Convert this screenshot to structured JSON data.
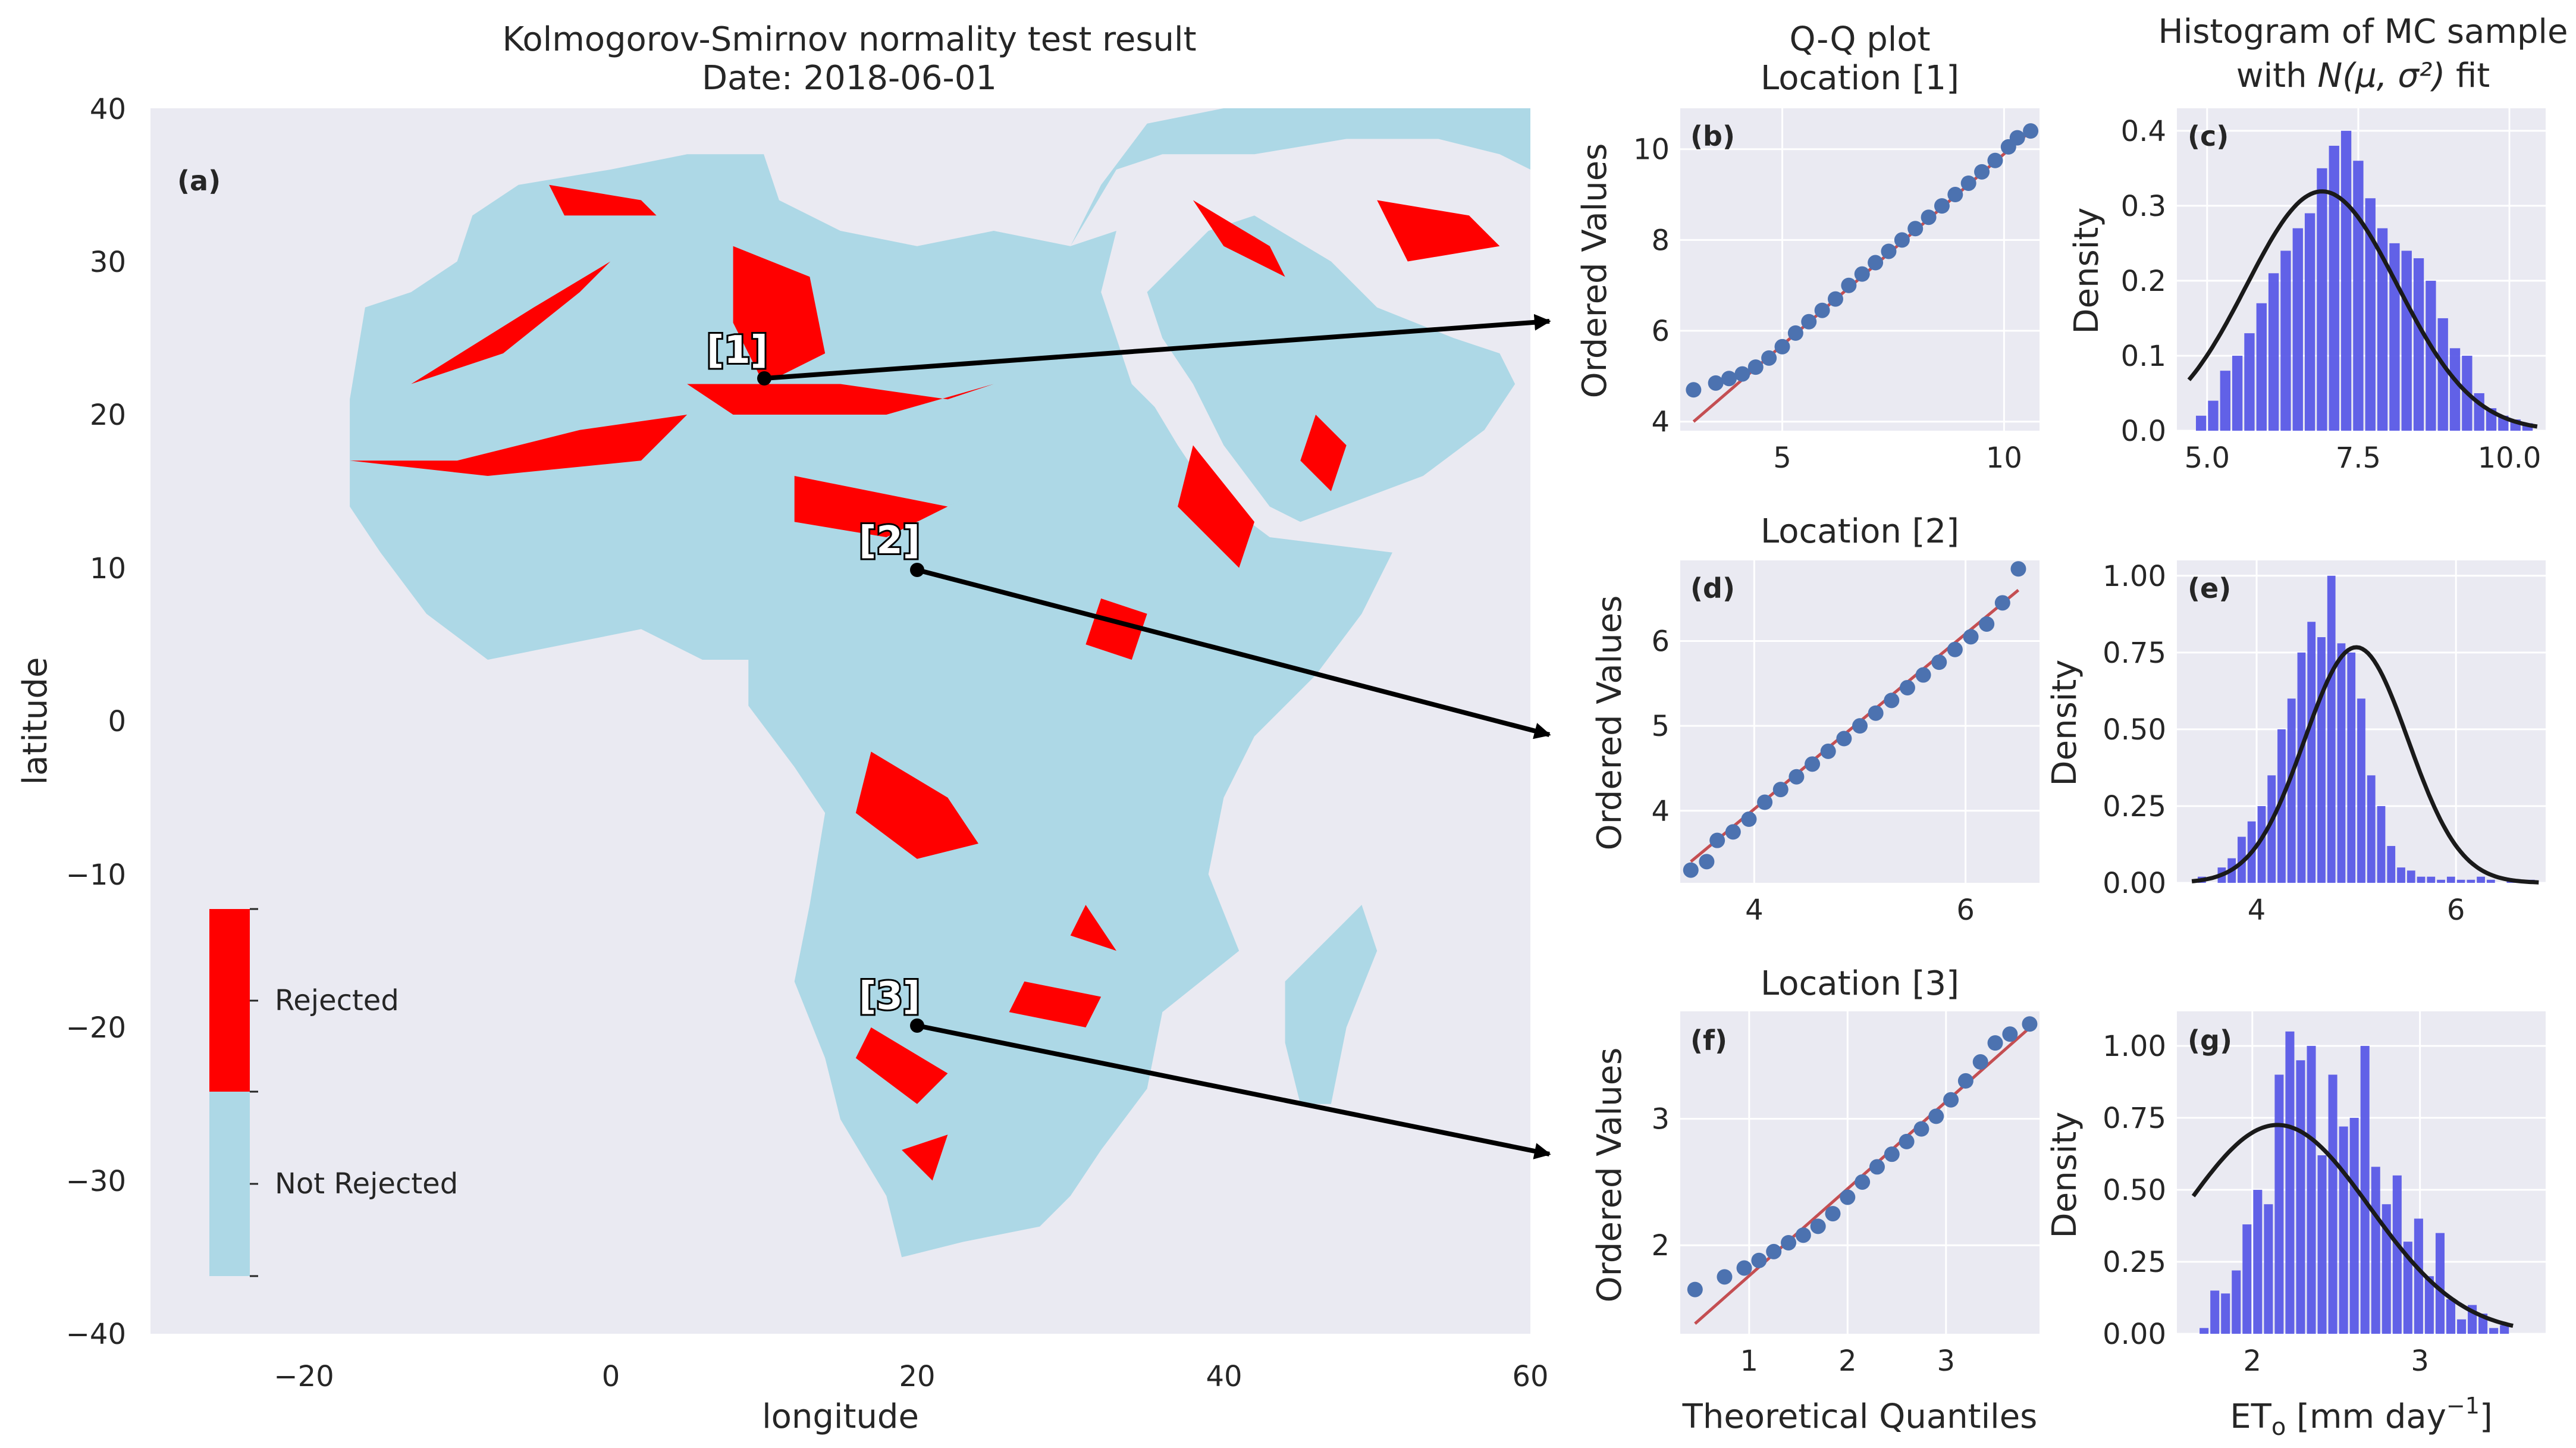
{
  "colors": {
    "rejected": "#ff0000",
    "not_rejected": "#add8e6",
    "panel_bg": "#eaeaf2",
    "grid": "#ffffff",
    "qq_points": "#4c72b0",
    "qq_line": "#c44e52",
    "hist_bars": "#5a5ae6",
    "fit_curve": "#1a1a1a"
  },
  "map_panel": {
    "title_line1": "Kolmogorov-Smirnov normality test result",
    "title_line2": "Date: 2018-06-01",
    "panel_label": "(a)",
    "xlabel": "longitude",
    "ylabel": "latitude",
    "xticks": [
      "−20",
      "0",
      "20",
      "40",
      "60"
    ],
    "yticks": [
      "40",
      "30",
      "20",
      "10",
      "0",
      "−10",
      "−20",
      "−30",
      "−40"
    ],
    "legend": {
      "rejected": "Rejected",
      "not_rejected": "Not Rejected"
    },
    "location_markers": [
      "[1]",
      "[2]",
      "[3]"
    ]
  },
  "column_titles": {
    "qq": "Q-Q plot",
    "hist_line1": "Histogram of MC sample",
    "hist_line2_prefix": "with ",
    "hist_line2_formula": "N(μ, σ²)",
    "hist_line2_suffix": " fit"
  },
  "qq_common": {
    "ylabel": "Ordered Values",
    "xlabel": "Theoretical Quantiles"
  },
  "hist_common": {
    "ylabel": "Density",
    "xlabel_prefix": "ET",
    "xlabel_sub": "o",
    "xlabel_unit": " [mm day",
    "xlabel_sup": "−1",
    "xlabel_close": "]"
  },
  "locations": [
    {
      "title": "Location [1]",
      "qq_label": "(b)",
      "qq_xticks": [
        "5",
        "10"
      ],
      "qq_yticks": [
        "4",
        "6",
        "8",
        "10"
      ],
      "hist_label": "(c)",
      "hist_xticks": [
        "5.0",
        "7.5",
        "10.0"
      ],
      "hist_yticks": [
        "0.0",
        "0.1",
        "0.2",
        "0.3",
        "0.4"
      ]
    },
    {
      "title": "Location [2]",
      "qq_label": "(d)",
      "qq_xticks": [
        "4",
        "6"
      ],
      "qq_yticks": [
        "4",
        "5",
        "6"
      ],
      "hist_label": "(e)",
      "hist_xticks": [
        "4",
        "6"
      ],
      "hist_yticks": [
        "0.00",
        "0.25",
        "0.50",
        "0.75",
        "1.00"
      ]
    },
    {
      "title": "Location [3]",
      "qq_label": "(f)",
      "qq_xticks": [
        "1",
        "2",
        "3"
      ],
      "qq_yticks": [
        "2",
        "3"
      ],
      "hist_label": "(g)",
      "hist_xticks": [
        "2",
        "3"
      ],
      "hist_yticks": [
        "0.00",
        "0.25",
        "0.50",
        "0.75",
        "1.00"
      ]
    }
  ],
  "chart_data": [
    {
      "type": "heatmap",
      "title": "Kolmogorov-Smirnov normality test result\nDate: 2018-06-01",
      "xlabel": "longitude",
      "ylabel": "latitude",
      "xlim": [
        -30,
        60
      ],
      "ylim": [
        -40,
        40
      ],
      "categories": [
        "Rejected",
        "Not Rejected"
      ],
      "grid": false,
      "legend": "colorbar lower-left",
      "points_of_interest": [
        {
          "name": "[1]",
          "lon": 10,
          "lat": 22.5
        },
        {
          "name": "[2]",
          "lon": 20,
          "lat": 10
        },
        {
          "name": "[3]",
          "lon": 20,
          "lat": -20
        }
      ]
    },
    {
      "type": "scatter",
      "title": "Location [1]",
      "xlabel": "",
      "ylabel": "Ordered Values",
      "xlim": [
        2.7,
        10.8
      ],
      "ylim": [
        3.8,
        10.9
      ],
      "grid": true,
      "reference_line": {
        "x": [
          3.0,
          10.6
        ],
        "y": [
          4.0,
          10.4
        ]
      },
      "x": [
        3.0,
        3.5,
        3.8,
        4.1,
        4.4,
        4.7,
        5.0,
        5.3,
        5.6,
        5.9,
        6.2,
        6.5,
        6.8,
        7.1,
        7.4,
        7.7,
        8.0,
        8.3,
        8.6,
        8.9,
        9.2,
        9.5,
        9.8,
        10.1,
        10.3,
        10.6
      ],
      "y": [
        4.7,
        4.85,
        4.95,
        5.05,
        5.2,
        5.4,
        5.65,
        5.95,
        6.2,
        6.45,
        6.7,
        7.0,
        7.25,
        7.5,
        7.75,
        8.0,
        8.25,
        8.5,
        8.75,
        9.0,
        9.25,
        9.5,
        9.75,
        10.05,
        10.25,
        10.4
      ]
    },
    {
      "type": "scatter",
      "title": "Location [2]",
      "xlabel": "",
      "ylabel": "Ordered Values",
      "xlim": [
        3.3,
        6.7
      ],
      "ylim": [
        3.15,
        6.95
      ],
      "grid": true,
      "reference_line": {
        "x": [
          3.4,
          6.5
        ],
        "y": [
          3.4,
          6.6
        ]
      },
      "x": [
        3.4,
        3.55,
        3.65,
        3.8,
        3.95,
        4.1,
        4.25,
        4.4,
        4.55,
        4.7,
        4.85,
        5.0,
        5.15,
        5.3,
        5.45,
        5.6,
        5.75,
        5.9,
        6.05,
        6.2,
        6.35,
        6.5
      ],
      "y": [
        3.3,
        3.4,
        3.65,
        3.75,
        3.9,
        4.1,
        4.25,
        4.4,
        4.55,
        4.7,
        4.85,
        5.0,
        5.15,
        5.3,
        5.45,
        5.6,
        5.75,
        5.9,
        6.05,
        6.2,
        6.45,
        6.85
      ]
    },
    {
      "type": "scatter",
      "title": "Location [3]",
      "xlabel": "Theoretical Quantiles",
      "ylabel": "Ordered Values",
      "xlim": [
        0.3,
        3.95
      ],
      "ylim": [
        1.3,
        3.85
      ],
      "grid": true,
      "reference_line": {
        "x": [
          0.45,
          3.85
        ],
        "y": [
          1.38,
          3.72
        ]
      },
      "x": [
        0.45,
        0.75,
        0.95,
        1.1,
        1.25,
        1.4,
        1.55,
        1.7,
        1.85,
        2.0,
        2.15,
        2.3,
        2.45,
        2.6,
        2.75,
        2.9,
        3.05,
        3.2,
        3.35,
        3.5,
        3.65,
        3.85
      ],
      "y": [
        1.65,
        1.75,
        1.82,
        1.88,
        1.95,
        2.02,
        2.08,
        2.15,
        2.25,
        2.38,
        2.5,
        2.62,
        2.72,
        2.82,
        2.92,
        3.02,
        3.15,
        3.3,
        3.45,
        3.6,
        3.67,
        3.75
      ]
    },
    {
      "type": "bar",
      "title": "Location [1]",
      "xlabel": "",
      "ylabel": "Density",
      "xlim": [
        4.5,
        10.6
      ],
      "ylim": [
        0,
        0.43
      ],
      "grid": true,
      "bins": {
        "start": 4.8,
        "width": 0.2
      },
      "values": [
        0.02,
        0.04,
        0.08,
        0.1,
        0.13,
        0.17,
        0.21,
        0.24,
        0.27,
        0.29,
        0.35,
        0.38,
        0.4,
        0.36,
        0.31,
        0.27,
        0.25,
        0.24,
        0.23,
        0.2,
        0.15,
        0.11,
        0.1,
        0.05,
        0.03,
        0.02,
        0.015,
        0.01
      ],
      "fit": {
        "type": "normal",
        "mean": 6.9,
        "std": 1.25
      }
    },
    {
      "type": "bar",
      "title": "Location [2]",
      "xlabel": "",
      "ylabel": "Density",
      "xlim": [
        3.2,
        6.9
      ],
      "ylim": [
        0,
        1.05
      ],
      "grid": true,
      "bins": {
        "start": 3.4,
        "width": 0.1
      },
      "values": [
        0.02,
        0.0,
        0.05,
        0.08,
        0.15,
        0.2,
        0.25,
        0.35,
        0.5,
        0.6,
        0.75,
        0.85,
        0.8,
        1.0,
        0.78,
        0.75,
        0.6,
        0.35,
        0.25,
        0.12,
        0.05,
        0.04,
        0.02,
        0.02,
        0.01,
        0.02,
        0.01,
        0.01,
        0.02,
        0.01,
        0.0,
        0.01,
        0.0,
        0.01
      ],
      "fit": {
        "type": "normal",
        "mean": 5.0,
        "std": 0.52
      }
    },
    {
      "type": "bar",
      "title": "Location [3]",
      "xlabel": "ETₒ [mm day⁻¹]",
      "ylabel": "Density",
      "xlim": [
        1.55,
        3.75
      ],
      "ylim": [
        0,
        1.12
      ],
      "grid": true,
      "bins": {
        "start": 1.68,
        "width": 0.064
      },
      "values": [
        0.02,
        0.15,
        0.14,
        0.22,
        0.38,
        0.5,
        0.45,
        0.9,
        1.05,
        0.95,
        1.0,
        0.62,
        0.9,
        0.72,
        0.75,
        1.0,
        0.58,
        0.45,
        0.55,
        0.32,
        0.4,
        0.2,
        0.35,
        0.12,
        0.05,
        0.1,
        0.07,
        0.02,
        0.03
      ],
      "fit": {
        "type": "normal",
        "mean": 2.15,
        "std": 0.55
      }
    }
  ]
}
